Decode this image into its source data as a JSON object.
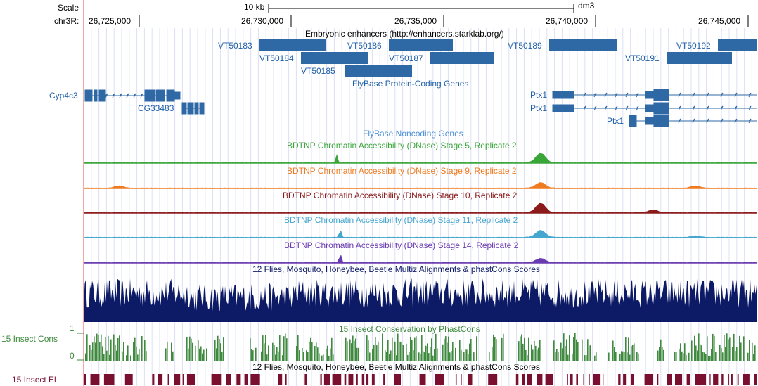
{
  "header": {
    "scale_label": "Scale",
    "scale_bar": "10 kb",
    "assembly": "dm3",
    "chrom_label": "chr3R:",
    "positions": [
      "26,725,000",
      "26,730,000",
      "26,735,000",
      "26,740,000",
      "26,745,000"
    ]
  },
  "enhancers": {
    "title": "Embryonic enhancers (http://enhancers.starklab.org/)",
    "items": [
      "VT50183",
      "VT50184",
      "VT50185",
      "VT50186",
      "VT50187",
      "VT50189",
      "VT50191",
      "VT50192"
    ]
  },
  "genes": {
    "title": "FlyBase Protein-Coding Genes",
    "items": [
      "Cyp4c3",
      "CG33483",
      "Ptx1",
      "Ptx1",
      "Ptx1"
    ]
  },
  "noncoding": {
    "title": "FlyBase Noncoding Genes"
  },
  "dnase_tracks": [
    {
      "title": "BDTNP Chromatin Accessibility (DNase) Stage 5, Replicate 2",
      "color": "#3aa63a"
    },
    {
      "title": "BDTNP Chromatin Accessibility (DNase) Stage 9, Replicate 2",
      "color": "#ef7b20"
    },
    {
      "title": "BDTNP Chromatin Accessibility (DNase) Stage 10, Replicate 2",
      "color": "#8b1a1a"
    },
    {
      "title": "BDTNP Chromatin Accessibility (DNase) Stage 11, Replicate 2",
      "color": "#45a6cf"
    },
    {
      "title": "BDTNP Chromatin Accessibility (DNase) Stage 14, Replicate 2",
      "color": "#6a3bb0"
    }
  ],
  "multiz": {
    "title": "12 Flies, Mosquito, Honeybee, Beetle Multiz Alignments & phastCons Scores",
    "color": "#0d1a66"
  },
  "phastcons": {
    "title": "15 Insect Conservation by PhastCons",
    "side_label": "15 Insect Cons",
    "axis_max": "1",
    "axis_min": "0",
    "color": "#3f8a3f"
  },
  "elements": {
    "title": "12 Flies, Mosquito, Honeybee, Beetle Multiz Alignments & phastCons Scores",
    "side_label": "15 Insect El",
    "color": "#7a1030"
  }
}
